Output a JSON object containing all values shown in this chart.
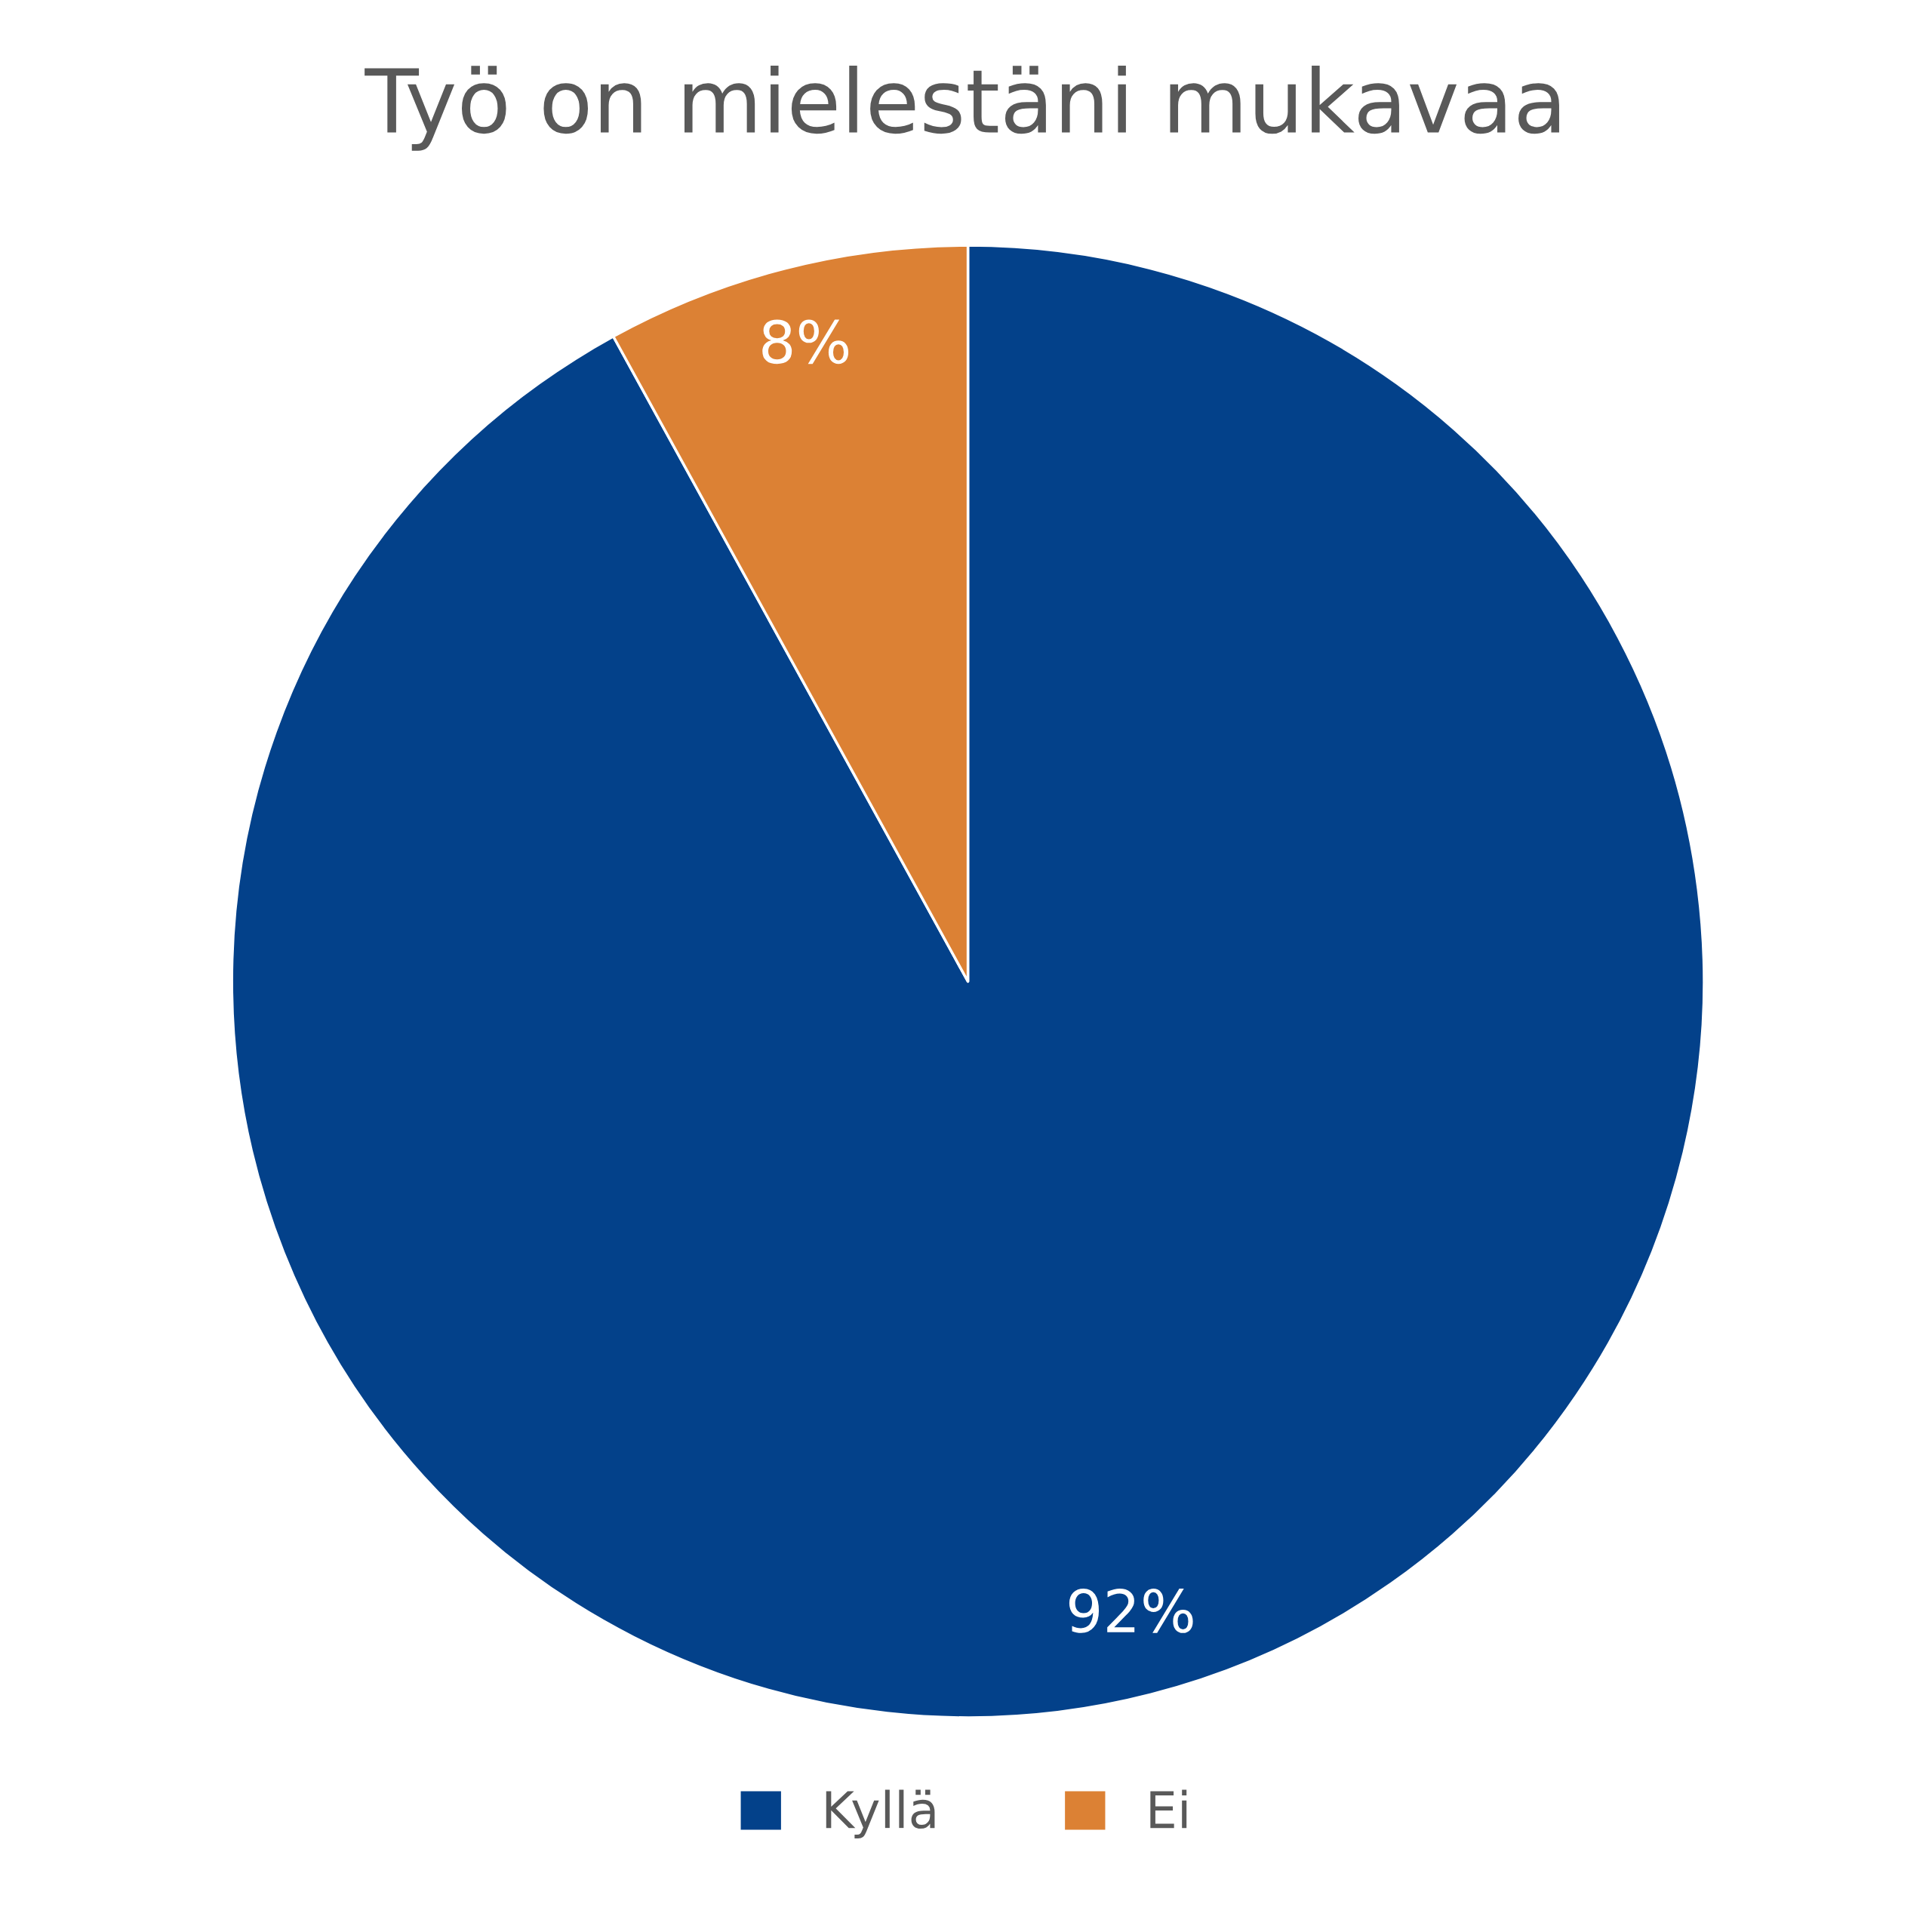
{
  "chart_data": {
    "type": "pie",
    "title": "Työ on mielestäni mukavaa",
    "categories": [
      "Kyllä",
      "Ei"
    ],
    "values": [
      92,
      8
    ],
    "colors": [
      "#03418a",
      "#dc8134"
    ],
    "value_labels": [
      "92%",
      "8%"
    ],
    "legend": "bottom"
  }
}
